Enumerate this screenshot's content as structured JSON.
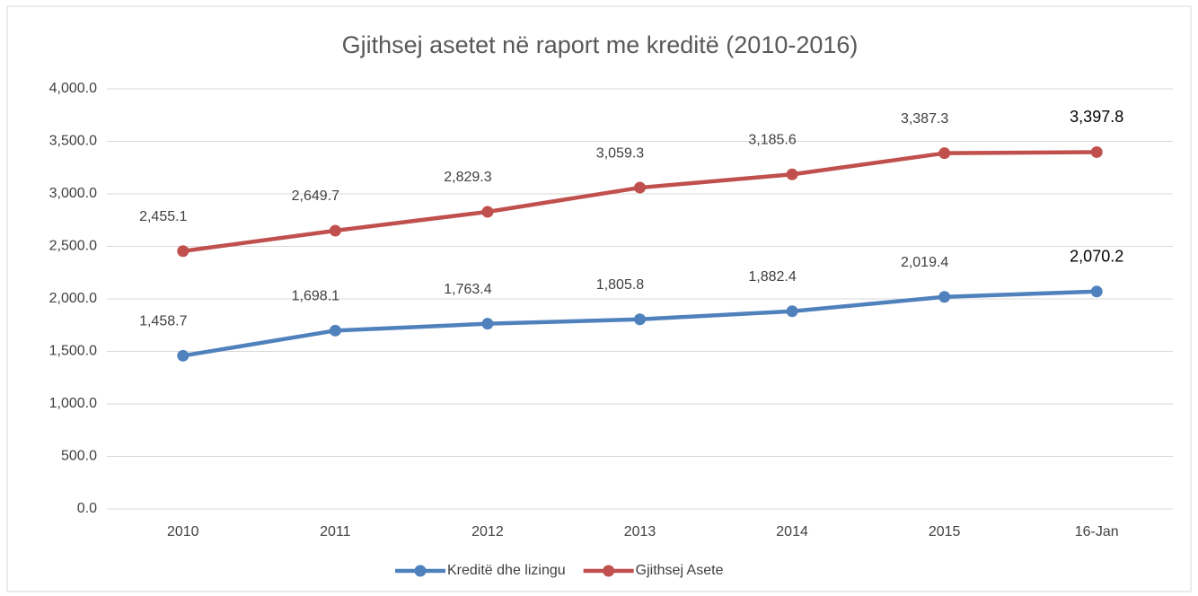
{
  "chart_data": {
    "type": "line",
    "title": "Gjithsej asetet në raport me kreditë (2010-2016)",
    "categories": [
      "2010",
      "2011",
      "2012",
      "2013",
      "2014",
      "2015",
      "16-Jan"
    ],
    "series": [
      {
        "name": "Kreditë dhe lizingu",
        "color": "#4f81bd",
        "values": [
          1458.7,
          1698.1,
          1763.4,
          1805.8,
          1882.4,
          2019.4,
          2070.2
        ],
        "value_labels": [
          "1,458.7",
          "1,698.1",
          "1,763.4",
          "1,805.8",
          "1,882.4",
          "2,019.4",
          "2,070.2"
        ]
      },
      {
        "name": "Gjithsej Asete",
        "color": "#c0504d",
        "values": [
          2455.1,
          2649.7,
          2829.3,
          3059.3,
          3185.6,
          3387.3,
          3397.8
        ],
        "value_labels": [
          "2,455.1",
          "2,649.7",
          "2,829.3",
          "3,059.3",
          "3,185.6",
          "3,387.3",
          "3,397.8"
        ]
      }
    ],
    "ylim": [
      0,
      4000
    ],
    "yticks": [
      {
        "value": 0,
        "label": "0.0"
      },
      {
        "value": 500,
        "label": "500.0"
      },
      {
        "value": 1000,
        "label": "1,000.0"
      },
      {
        "value": 1500,
        "label": "1,500.0"
      },
      {
        "value": 2000,
        "label": "2,000.0"
      },
      {
        "value": 2500,
        "label": "2,500.0"
      },
      {
        "value": 3000,
        "label": "3,000.0"
      },
      {
        "value": 3500,
        "label": "3,500.0"
      },
      {
        "value": 4000,
        "label": "4,000.0"
      }
    ],
    "grid": true,
    "legend": "bottom"
  }
}
